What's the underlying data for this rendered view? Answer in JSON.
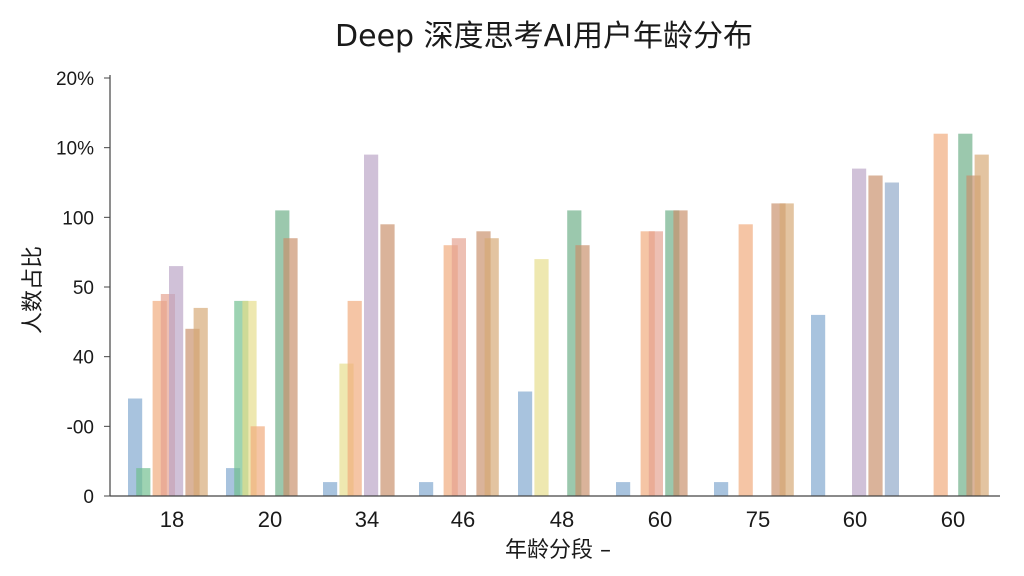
{
  "chart_data": {
    "type": "bar",
    "title": "Deep 深度思考AI用户年龄分布",
    "xlabel": "年龄分段 –",
    "ylabel": "人数占比",
    "y_tick_labels": [
      "0",
      "-00",
      "40",
      "50",
      "100",
      "10%",
      "20%"
    ],
    "ylim": [
      0,
      6
    ],
    "grid": false,
    "categories": [
      "18",
      "20",
      "34",
      "46",
      "48",
      "60",
      "75",
      "60",
      "60"
    ],
    "series": [
      {
        "color": "#7FA7CF",
        "values": [
          1.4,
          0.4,
          0.2,
          0.2,
          1.5,
          0.2,
          0.2,
          2.6,
          0.1
        ]
      },
      {
        "color": "#6FBE8E",
        "values": [
          0.4,
          2.8,
          0.1,
          0.1,
          0.1,
          0.1,
          0.1,
          0.1,
          0.1
        ]
      },
      {
        "color": "#E6DD8A",
        "values": [
          0.1,
          2.8,
          1.9,
          0.1,
          3.4,
          0.1,
          0.1,
          0.1,
          0.1
        ]
      },
      {
        "color": "#F0A97A",
        "values": [
          2.8,
          1.0,
          2.8,
          3.6,
          0.1,
          3.8,
          3.9,
          0.1,
          5.2
        ]
      },
      {
        "color": "#E5A08F",
        "values": [
          2.9,
          0.1,
          0.1,
          3.7,
          0.1,
          3.8,
          0.1,
          0.1,
          0.1
        ]
      },
      {
        "color": "#B9A4C6",
        "values": [
          3.3,
          0.1,
          4.9,
          0.1,
          0.1,
          0.1,
          0.1,
          4.7,
          0.1
        ]
      },
      {
        "color": "#6BAE86",
        "values": [
          0.1,
          4.1,
          0.1,
          0.1,
          4.1,
          4.1,
          0.1,
          0.1,
          5.2
        ]
      },
      {
        "color": "#C98F6A",
        "values": [
          2.4,
          3.7,
          3.9,
          3.8,
          3.6,
          4.1,
          4.2,
          4.6,
          4.6
        ]
      },
      {
        "color": "#D6A874",
        "values": [
          2.7,
          0.1,
          0.1,
          3.7,
          0.1,
          0.1,
          4.2,
          0.1,
          4.9
        ]
      },
      {
        "color": "#8FA8C8",
        "values": [
          0.1,
          0.1,
          0.1,
          0.1,
          0.1,
          0.1,
          0.1,
          4.5,
          0.1
        ]
      }
    ]
  }
}
